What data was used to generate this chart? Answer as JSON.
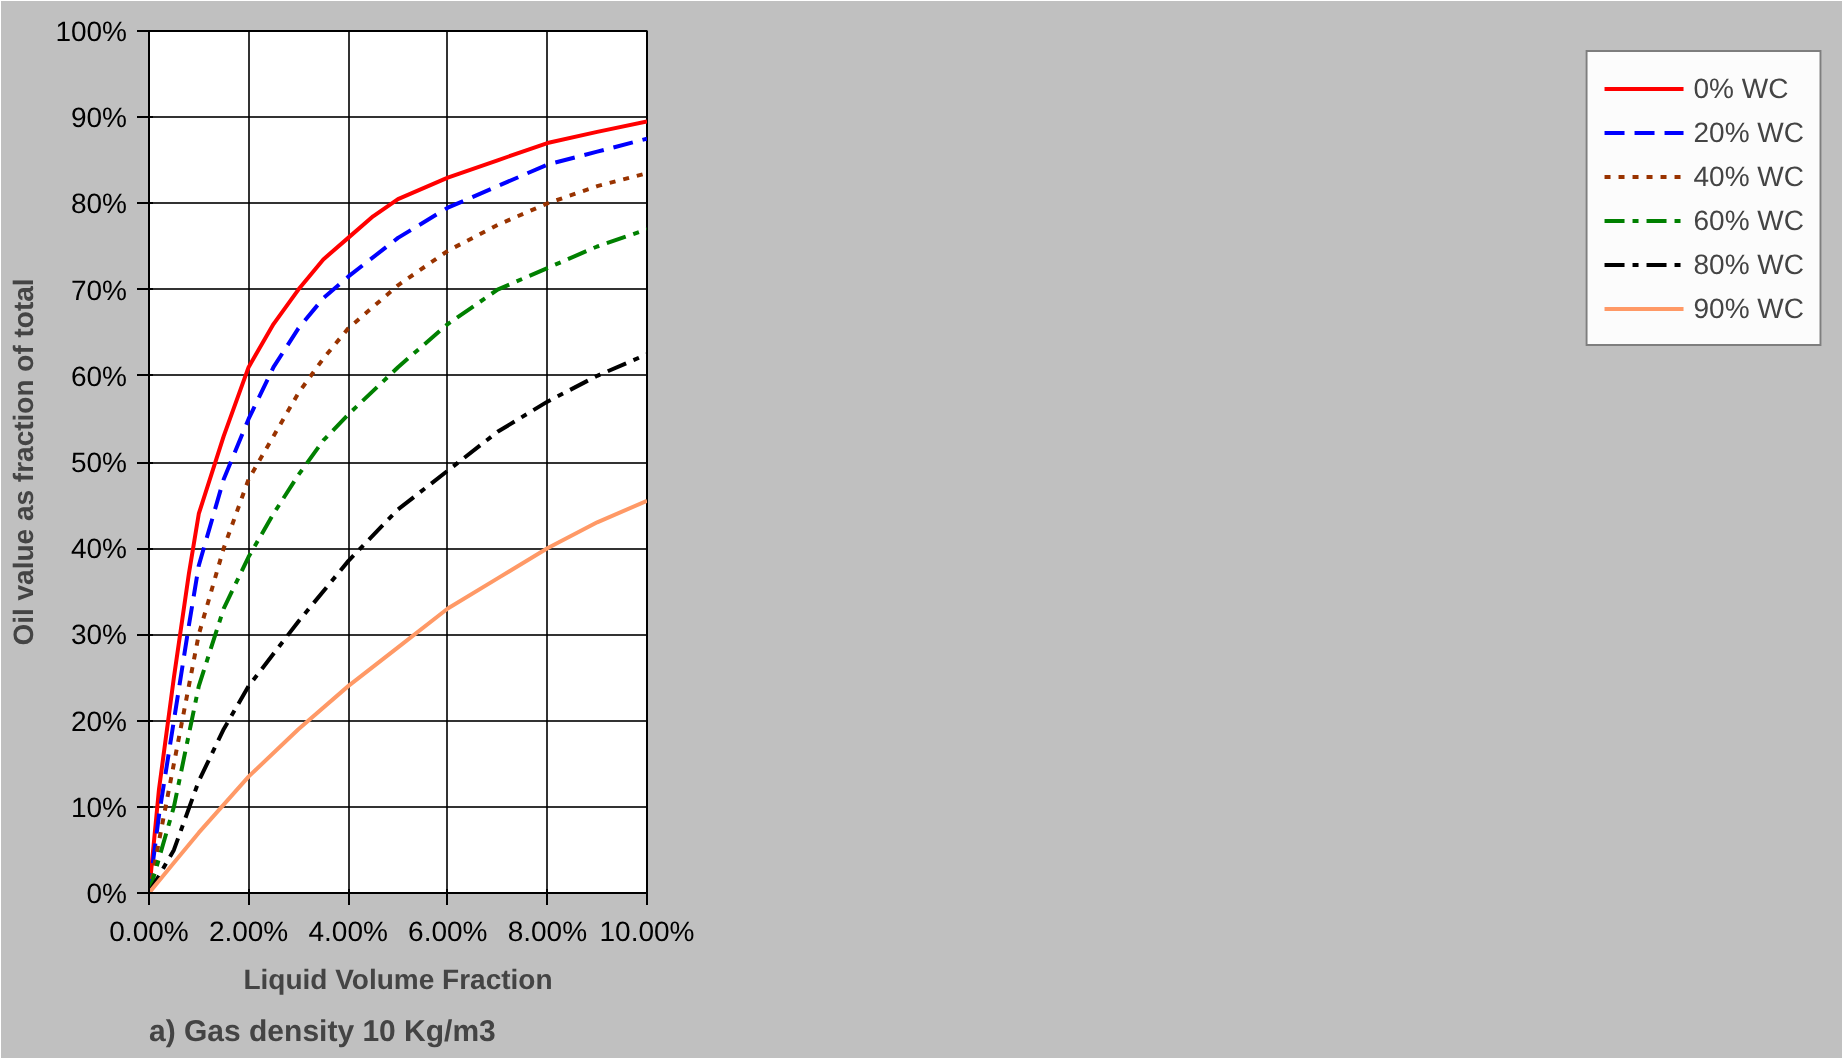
{
  "chart_data": {
    "type": "line",
    "xlabel": "Liquid Volume Fraction",
    "ylabel": "Oil value as fraction of total",
    "annotations": [
      "a)  Gas density 10 Kg/m3"
    ],
    "xlim": [
      0,
      10
    ],
    "xticks": [
      {
        "value": 0,
        "label": "0.00%"
      },
      {
        "value": 2,
        "label": "2.00%"
      },
      {
        "value": 4,
        "label": "4.00%"
      },
      {
        "value": 6,
        "label": "6.00%"
      },
      {
        "value": 8,
        "label": "8.00%"
      },
      {
        "value": 10,
        "label": "10.00%"
      }
    ],
    "ylim": [
      0,
      100
    ],
    "yticks": [
      {
        "value": 0,
        "label": "0%"
      },
      {
        "value": 10,
        "label": "10%"
      },
      {
        "value": 20,
        "label": "20%"
      },
      {
        "value": 30,
        "label": "30%"
      },
      {
        "value": 40,
        "label": "40%"
      },
      {
        "value": 50,
        "label": "50%"
      },
      {
        "value": 60,
        "label": "60%"
      },
      {
        "value": 70,
        "label": "70%"
      },
      {
        "value": 80,
        "label": "80%"
      },
      {
        "value": 90,
        "label": "90%"
      },
      {
        "value": 100,
        "label": "100%"
      }
    ],
    "grid": true,
    "legend": "right",
    "marker": "none",
    "series": [
      {
        "name": "0% WC",
        "color": "#ff0000",
        "line_style": "solid",
        "x": [
          0,
          0.2,
          0.5,
          0.8,
          1,
          1.5,
          2,
          2.5,
          3,
          3.5,
          4,
          4.5,
          5,
          6,
          7,
          8,
          9,
          10
        ],
        "values": [
          0,
          12,
          25,
          37,
          44,
          53,
          61,
          66,
          70,
          73.5,
          76,
          78.5,
          80.5,
          83,
          85,
          87,
          88.3,
          89.5
        ]
      },
      {
        "name": "20% WC",
        "color": "#0000ff",
        "line_style": "dashed",
        "x": [
          0,
          0.2,
          0.5,
          0.8,
          1,
          1.5,
          2,
          2.5,
          3,
          3.5,
          4,
          5,
          6,
          7,
          8,
          9,
          10
        ],
        "values": [
          0,
          9,
          20,
          31,
          38,
          48,
          55,
          61,
          65.5,
          69,
          71.5,
          76,
          79.5,
          82,
          84.5,
          86,
          87.5
        ]
      },
      {
        "name": "40% WC",
        "color": "#993300",
        "line_style": "dotted",
        "x": [
          0,
          0.2,
          0.5,
          0.8,
          1,
          1.5,
          2,
          2.5,
          3,
          3.5,
          4,
          5,
          6,
          7,
          8,
          9,
          10
        ],
        "values": [
          0,
          6,
          15,
          24,
          30,
          40,
          48,
          53,
          58,
          62,
          65.5,
          70.5,
          74.5,
          77.5,
          80,
          82,
          83.5
        ]
      },
      {
        "name": "60% WC",
        "color": "#008000",
        "line_style": "dashdot",
        "x": [
          0,
          0.2,
          0.5,
          1,
          1.5,
          2,
          2.5,
          3,
          3.5,
          4,
          5,
          6,
          7,
          8,
          9,
          10
        ],
        "values": [
          0,
          4,
          10,
          24,
          33,
          39,
          44,
          48.5,
          52.5,
          55.5,
          61,
          66,
          70,
          72.5,
          75,
          77
        ]
      },
      {
        "name": "80% WC",
        "color": "#000000",
        "line_style": "dashdot",
        "x": [
          0,
          0.5,
          1,
          1.5,
          2,
          3,
          4,
          5,
          6,
          7,
          8,
          9,
          10
        ],
        "values": [
          0,
          5,
          13,
          19,
          24,
          31.5,
          38.5,
          44.5,
          49,
          53.5,
          57,
          60,
          62.5
        ]
      },
      {
        "name": "90% WC",
        "color": "#ff9966",
        "line_style": "solid",
        "x": [
          0,
          0.5,
          1,
          2,
          3,
          4,
          5,
          6,
          7,
          8,
          9,
          10
        ],
        "values": [
          0,
          3.5,
          7,
          13.5,
          19,
          24,
          28.5,
          33,
          36.5,
          40,
          43,
          45.5
        ]
      }
    ]
  }
}
